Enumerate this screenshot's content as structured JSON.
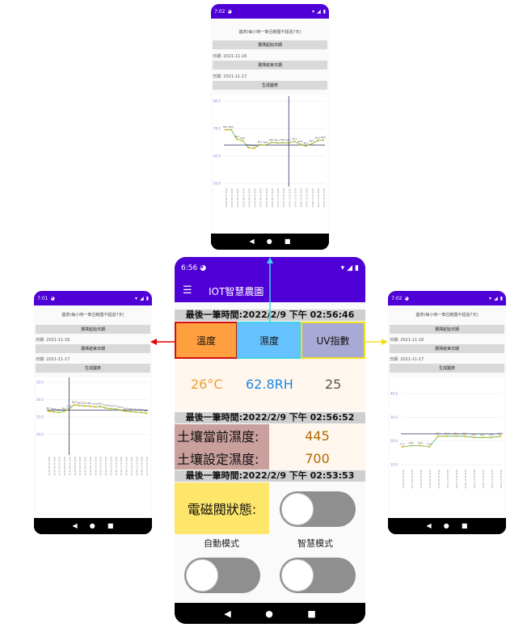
{
  "top_phone": {
    "time": "7:02",
    "subtitle": "圖表(每小時一筆且範圍不超過7天)",
    "start_button": "選擇起始日期",
    "start_date": "日期:  2021-11-16",
    "end_button": "選擇結束日期",
    "end_date": "日期:  2021-11-17",
    "generate_button": "生成圖表",
    "chart_data": {
      "type": "line",
      "y_ticks": [
        "80.0",
        "70.0",
        "60.0",
        "50.0"
      ],
      "ylim": [
        50,
        80
      ],
      "values": [
        69.5,
        69.5,
        66.1,
        65.5,
        63.0,
        62.8,
        64.1,
        64.0,
        64.9,
        64.7,
        64.8,
        64.7,
        65.3,
        64.2,
        63.7,
        64.4,
        65.6,
        65.8
      ],
      "data_labels": [
        "69.5",
        "69.5",
        "66.1",
        "65.5",
        "63.0",
        "62.8",
        "64.1",
        "64.0",
        "64.9",
        "64.7",
        "64.8",
        "64.7",
        "65.3",
        "64.2",
        "63.7",
        "64.4",
        "65.6",
        "65.8"
      ],
      "x_labels": [
        "2021-11-16 15:00",
        "2021-11-16 16:00",
        "2021-11-16 17:00",
        "2021-11-16 18:00",
        "2021-11-16 19:00",
        "2021-11-16 20:00",
        "2021-11-16 21:00",
        "2021-11-16 22:00",
        "2021-11-16 23:00",
        "2021-11-17 00:00",
        "2021-11-17 01:00",
        "2021-11-17 02:00",
        "2021-11-17 03:00",
        "2021-11-17 04:00",
        "2021-11-17 05:00",
        "2021-11-17 06:00",
        "2021-11-17 07:00",
        "2021-11-17 08:00"
      ],
      "limit_line": 64,
      "cursor_index": 11
    }
  },
  "left_phone": {
    "time": "7:01",
    "subtitle": "圖表(每小時一筆且範圍不超過7天)",
    "start_button": "選擇起始日期",
    "start_date": "日期:  2021-11-16",
    "end_button": "選擇結束日期",
    "end_date": "日期:  2021-11-17",
    "generate_button": "生成圖表",
    "chart_data": {
      "type": "line",
      "y_ticks": [
        "35.0",
        "30.0",
        "25.0",
        "20.0"
      ],
      "ylim": [
        15,
        35
      ],
      "values": [
        26.7,
        26.5,
        26.3,
        26.6,
        27.3,
        28.5,
        28.3,
        28.2,
        28.1,
        27.9,
        28.0,
        27.6,
        27.4,
        27.3,
        27.0,
        26.6,
        26.5,
        26.4,
        26.3,
        26.1
      ],
      "data_labels": [
        "26.7",
        "26.5",
        "26.3",
        "26.6",
        "27.3",
        "28.5",
        "28.3",
        "28.2",
        "28.1",
        "27.9",
        "28.0",
        "27.6",
        "27.4",
        "27.3",
        "27.0",
        "26.6",
        "26.5",
        "26.4",
        "26.3",
        "26.1"
      ],
      "x_labels": [
        "2021-11-16 15:00",
        "2021-11-16 16:00",
        "2021-11-16 17:00",
        "2021-11-16 18:00",
        "2021-11-16 19:00",
        "2021-11-16 20:00",
        "2021-11-16 21:00",
        "2021-11-16 22:00",
        "2021-11-16 23:00",
        "2021-11-17 00:00",
        "2021-11-17 01:00",
        "2021-11-17 02:00",
        "2021-11-17 03:00",
        "2021-11-17 04:00",
        "2021-11-17 05:00",
        "2021-11-17 06:00",
        "2021-11-17 07:00",
        "2021-11-17 08:00",
        "2021-11-17 09:00",
        "2021-11-17 10:00"
      ],
      "limit_line": 27,
      "cursor_index": 4
    }
  },
  "right_phone": {
    "time": "7:02",
    "subtitle": "圖表(每小時一筆且範圍不超過7天)",
    "start_button": "選擇起始日期",
    "start_date": "日期:  2021-11-16",
    "end_button": "選擇結束日期",
    "end_date": "日期:  2021-11-17",
    "generate_button": "生成圖表",
    "chart_data": {
      "type": "line",
      "y_ticks": [
        "40.0",
        "30.0",
        "20.0",
        "10.0"
      ],
      "ylim": [
        10,
        40
      ],
      "values": [
        17.5,
        18.0,
        18.0,
        17.5,
        22.0,
        22.0,
        22.0,
        22.0,
        21.5,
        21.5,
        21.5,
        22.0
      ],
      "data_labels": [
        "17.5",
        "18.0",
        "18.0",
        "17.5",
        "22.0",
        "22.0",
        "22.0",
        "22.0",
        "21.5",
        "21.5",
        "21.5",
        "22.0"
      ],
      "x_labels": [
        "2021-11-16 15:00",
        "2021-11-16 17:00",
        "2021-11-16 19:00",
        "2021-11-16 21:00",
        "2021-11-16 23:00",
        "2021-11-17 01:00",
        "2021-11-17 03:00",
        "2021-11-17 05:00",
        "2021-11-17 07:00",
        "2021-11-17 09:00",
        "2021-11-17 11:00",
        "2021-11-17 13:00"
      ],
      "limit_line": 23,
      "cursor_index": -1
    }
  },
  "main_phone": {
    "time": "6:56",
    "title": "IOT智慧農園",
    "last_time_1": "最後一筆時間:2022/2/9 下午 02:56:46",
    "tabs": {
      "temp": "溫度",
      "humidity": "濕度",
      "uv": "UV指數"
    },
    "values": {
      "temp": "26°C",
      "humidity": "62.8RH",
      "uv": "25"
    },
    "last_time_2": "最後一筆時間:2022/2/9 下午 02:56:52",
    "soil_current_label": "土壤當前濕度:",
    "soil_current_value": "445",
    "soil_set_label": "土壤設定濕度:",
    "soil_set_value": "700",
    "last_time_3": "最後一筆時間:2022/2/9 下午 02:53:53",
    "valve_label": "電磁閥狀態:",
    "auto_mode": "自動模式",
    "smart_mode": "智慧模式"
  },
  "colors": {
    "purple": "#4f00d6",
    "temp_tab": "#ff9f40",
    "humidity_tab": "#66c2ff",
    "uv_tab": "#a9a9d6",
    "arrow_red": "#e00000",
    "arrow_cyan": "#3fd3f0",
    "arrow_yellow": "#f0e020"
  }
}
